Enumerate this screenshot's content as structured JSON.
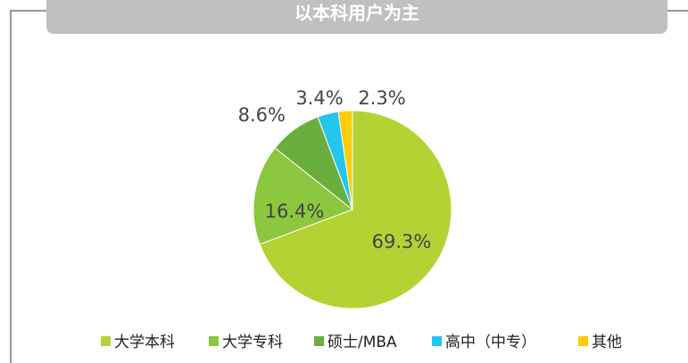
{
  "chart_data": {
    "type": "pie",
    "title": "以本科用户为主",
    "categories": [
      "大学本科",
      "大学专科",
      "硕士/MBA",
      "高中（中专）",
      "其他"
    ],
    "values": [
      69.3,
      16.4,
      8.6,
      3.4,
      2.3
    ],
    "value_labels": [
      "69.3%",
      "16.4%",
      "8.6%",
      "3.4%",
      "2.3%"
    ],
    "colors": [
      "#b3d335",
      "#8dc63f",
      "#6aae3e",
      "#24c6ec",
      "#fdcc0a"
    ],
    "legend": "bottom"
  }
}
